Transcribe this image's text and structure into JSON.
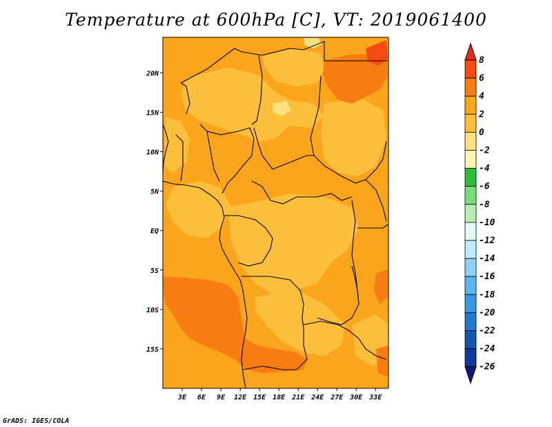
{
  "title": "Temperature at 600hPa [C], VT: 2019061400",
  "credit": "GrADS: IGES/COLA",
  "map": {
    "variable": "Temperature at 600hPa",
    "units": "C",
    "valid_time": "2019061400",
    "lon_range": [
      0,
      35
    ],
    "lat_range": [
      -20,
      24.5
    ],
    "lat_ticks": [
      {
        "value": 20,
        "label": "20N"
      },
      {
        "value": 15,
        "label": "15N"
      },
      {
        "value": 10,
        "label": "10N"
      },
      {
        "value": 5,
        "label": "5N"
      },
      {
        "value": 0,
        "label": "EQ"
      },
      {
        "value": -5,
        "label": "5S"
      },
      {
        "value": -10,
        "label": "10S"
      },
      {
        "value": -15,
        "label": "15S"
      }
    ],
    "lon_ticks": [
      {
        "value": 3,
        "label": "3E"
      },
      {
        "value": 6,
        "label": "6E"
      },
      {
        "value": 9,
        "label": "9E"
      },
      {
        "value": 12,
        "label": "12E"
      },
      {
        "value": 15,
        "label": "15E"
      },
      {
        "value": 18,
        "label": "18E"
      },
      {
        "value": 21,
        "label": "21E"
      },
      {
        "value": 24,
        "label": "24E"
      },
      {
        "value": 27,
        "label": "27E"
      },
      {
        "value": 30,
        "label": "30E"
      },
      {
        "value": 33,
        "label": "33E"
      }
    ]
  },
  "colorbar": {
    "levels": [
      "8",
      "6",
      "4",
      "2",
      "0",
      "-2",
      "-4",
      "-6",
      "-8",
      "-10",
      "-12",
      "-14",
      "-16",
      "-18",
      "-20",
      "-22",
      "-24",
      "-26"
    ],
    "colors": [
      "#e8281e",
      "#f54a12",
      "#f77c12",
      "#fba51c",
      "#fbbf3c",
      "#fde17c",
      "#fff5b4",
      "#2fba3c",
      "#78dc78",
      "#b4f0b4",
      "#e1fbf5",
      "#bdebf9",
      "#8fd0f7",
      "#5ab5f0",
      "#3c97e2",
      "#2478d2",
      "#1657b4",
      "#1039a0",
      "#141678"
    ]
  },
  "colors": {
    "land_base": "#fba51c",
    "warm_patch": "#f77c12",
    "hot_patch": "#f54a12",
    "cool_patch": "#fbbf3c",
    "coolest_patch": "#fde17c"
  }
}
